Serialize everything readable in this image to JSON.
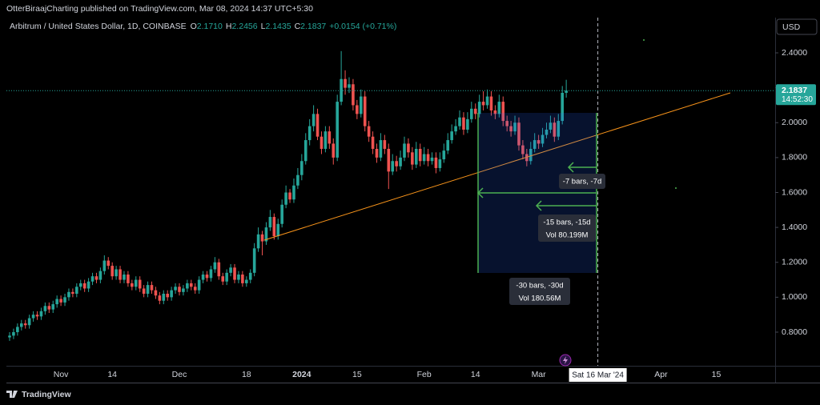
{
  "header": {
    "publisher": "OtterBiraajCharting published on TradingView.com, Mar 08, 2024 14:37 UTC+5:30",
    "brand": "TradingView"
  },
  "chart_data": {
    "type": "candlestick",
    "symbol": "Arbitrum / United States Dollar, 1D, COINBASE",
    "legend": [
      {
        "key": "O",
        "value": "2.1710"
      },
      {
        "key": "H",
        "value": "2.2456"
      },
      {
        "key": "L",
        "value": "2.1435"
      },
      {
        "key": "C",
        "value": "2.1837"
      }
    ],
    "change": "+0.0154 (+0.71%)",
    "currency": "USD",
    "up_color": "#26a69a",
    "down_color": "#ef5350",
    "last_price": {
      "value": 2.1837,
      "label": "2.1837"
    },
    "countdown": "14:52:30",
    "ylim": [
      0.6,
      2.6
    ],
    "yticks": [
      {
        "value": 0.8,
        "label": "0.8000"
      },
      {
        "value": 1.0,
        "label": "1.0000"
      },
      {
        "value": 1.2,
        "label": "1.2000"
      },
      {
        "value": 1.4,
        "label": "1.4000"
      },
      {
        "value": 1.6,
        "label": "1.6000"
      },
      {
        "value": 1.8,
        "label": "1.8000"
      },
      {
        "value": 2.0,
        "label": "2.0000"
      },
      {
        "value": 2.2,
        "label": "2.2000"
      },
      {
        "value": 2.4,
        "label": "2.4000"
      }
    ],
    "categories": [
      null,
      null,
      null,
      null,
      null,
      null,
      null,
      null,
      null,
      null,
      null,
      null,
      null,
      "Nov",
      null,
      null,
      null,
      null,
      null,
      null,
      null,
      null,
      null,
      null,
      null,
      null,
      "14",
      null,
      null,
      null,
      null,
      null,
      null,
      null,
      null,
      null,
      null,
      null,
      null,
      null,
      null,
      null,
      null,
      "Dec",
      null,
      null,
      null,
      null,
      null,
      null,
      null,
      null,
      null,
      null,
      null,
      null,
      null,
      null,
      null,
      null,
      "18",
      null,
      null,
      null,
      null,
      null,
      null,
      null,
      null,
      null,
      null,
      null,
      null,
      null,
      "2024",
      null,
      null,
      null,
      null,
      null,
      null,
      null,
      null,
      null,
      null,
      null,
      null,
      null,
      "15",
      null,
      null,
      null,
      null,
      null,
      null,
      null,
      null,
      null,
      null,
      null,
      null,
      null,
      null,
      null,
      null,
      "Feb",
      null,
      null,
      null,
      null,
      null,
      null,
      null,
      null,
      null,
      null,
      null,
      null,
      "14",
      null,
      null,
      null,
      null,
      null,
      null,
      null,
      null,
      null,
      null,
      null,
      null,
      null,
      null,
      null,
      "Mar",
      null,
      null,
      null,
      null,
      null,
      null,
      null,
      null,
      null,
      null,
      null,
      null,
      null,
      null,
      {
        "label": "Sat 16 Mar '24",
        "crosshair": true
      },
      null,
      null,
      null,
      null,
      null,
      null,
      null,
      null,
      null,
      null,
      null,
      null,
      null,
      null,
      null,
      "Apr",
      null,
      null,
      null,
      null,
      null,
      null,
      null,
      null,
      null,
      null,
      null,
      null,
      null,
      "15"
    ],
    "candles": [
      [
        0.77,
        0.8,
        0.75,
        0.78
      ],
      [
        0.78,
        0.82,
        0.76,
        0.8
      ],
      [
        0.8,
        0.85,
        0.78,
        0.83
      ],
      [
        0.83,
        0.87,
        0.81,
        0.85
      ],
      [
        0.85,
        0.87,
        0.82,
        0.84
      ],
      [
        0.84,
        0.9,
        0.82,
        0.88
      ],
      [
        0.88,
        0.92,
        0.86,
        0.9
      ],
      [
        0.9,
        0.92,
        0.87,
        0.89
      ],
      [
        0.89,
        0.94,
        0.87,
        0.92
      ],
      [
        0.92,
        0.97,
        0.9,
        0.95
      ],
      [
        0.95,
        0.97,
        0.91,
        0.93
      ],
      [
        0.93,
        0.98,
        0.91,
        0.96
      ],
      [
        0.96,
        1.01,
        0.94,
        0.99
      ],
      [
        0.99,
        1.01,
        0.95,
        0.97
      ],
      [
        0.97,
        1.02,
        0.95,
        1.0
      ],
      [
        1.0,
        1.05,
        0.98,
        1.03
      ],
      [
        1.03,
        1.05,
        1.0,
        1.02
      ],
      [
        1.02,
        1.08,
        1.0,
        1.06
      ],
      [
        1.06,
        1.1,
        1.04,
        1.08
      ],
      [
        1.08,
        1.1,
        1.03,
        1.05
      ],
      [
        1.05,
        1.11,
        1.03,
        1.09
      ],
      [
        1.09,
        1.14,
        1.07,
        1.12
      ],
      [
        1.12,
        1.14,
        1.08,
        1.1
      ],
      [
        1.1,
        1.17,
        1.08,
        1.15
      ],
      [
        1.15,
        1.24,
        1.13,
        1.21
      ],
      [
        1.21,
        1.23,
        1.16,
        1.18
      ],
      [
        1.18,
        1.2,
        1.1,
        1.12
      ],
      [
        1.12,
        1.18,
        1.1,
        1.16
      ],
      [
        1.16,
        1.18,
        1.08,
        1.1
      ],
      [
        1.1,
        1.15,
        1.08,
        1.13
      ],
      [
        1.13,
        1.15,
        1.06,
        1.08
      ],
      [
        1.08,
        1.1,
        1.04,
        1.06
      ],
      [
        1.06,
        1.12,
        1.04,
        1.1
      ],
      [
        1.1,
        1.12,
        1.03,
        1.05
      ],
      [
        1.05,
        1.07,
        1.0,
        1.02
      ],
      [
        1.02,
        1.09,
        1.0,
        1.07
      ],
      [
        1.07,
        1.09,
        1.02,
        1.04
      ],
      [
        1.04,
        1.06,
        0.99,
        1.01
      ],
      [
        1.01,
        1.03,
        0.96,
        0.98
      ],
      [
        0.98,
        1.04,
        0.96,
        1.02
      ],
      [
        1.02,
        1.04,
        0.98,
        1.0
      ],
      [
        1.0,
        1.06,
        0.98,
        1.04
      ],
      [
        1.04,
        1.08,
        1.02,
        1.06
      ],
      [
        1.06,
        1.08,
        1.01,
        1.03
      ],
      [
        1.03,
        1.07,
        1.01,
        1.05
      ],
      [
        1.05,
        1.1,
        1.03,
        1.08
      ],
      [
        1.08,
        1.1,
        1.04,
        1.06
      ],
      [
        1.06,
        1.08,
        1.02,
        1.04
      ],
      [
        1.04,
        1.12,
        1.02,
        1.1
      ],
      [
        1.1,
        1.15,
        1.08,
        1.13
      ],
      [
        1.13,
        1.15,
        1.09,
        1.11
      ],
      [
        1.11,
        1.18,
        1.09,
        1.16
      ],
      [
        1.16,
        1.23,
        1.14,
        1.2
      ],
      [
        1.2,
        1.22,
        1.1,
        1.12
      ],
      [
        1.12,
        1.14,
        1.07,
        1.09
      ],
      [
        1.09,
        1.16,
        1.07,
        1.14
      ],
      [
        1.14,
        1.19,
        1.12,
        1.17
      ],
      [
        1.17,
        1.19,
        1.08,
        1.1
      ],
      [
        1.1,
        1.15,
        1.08,
        1.13
      ],
      [
        1.13,
        1.15,
        1.06,
        1.08
      ],
      [
        1.08,
        1.12,
        1.06,
        1.1
      ],
      [
        1.1,
        1.16,
        1.08,
        1.14
      ],
      [
        1.14,
        1.31,
        1.12,
        1.28
      ],
      [
        1.28,
        1.4,
        1.26,
        1.36
      ],
      [
        1.36,
        1.38,
        1.24,
        1.32
      ],
      [
        1.32,
        1.43,
        1.3,
        1.4
      ],
      [
        1.4,
        1.5,
        1.38,
        1.46
      ],
      [
        1.46,
        1.48,
        1.33,
        1.35
      ],
      [
        1.35,
        1.45,
        1.33,
        1.42
      ],
      [
        1.42,
        1.56,
        1.4,
        1.53
      ],
      [
        1.53,
        1.64,
        1.51,
        1.6
      ],
      [
        1.6,
        1.62,
        1.54,
        1.56
      ],
      [
        1.56,
        1.68,
        1.54,
        1.64
      ],
      [
        1.64,
        1.74,
        1.62,
        1.7
      ],
      [
        1.7,
        1.82,
        1.67,
        1.78
      ],
      [
        1.78,
        1.94,
        1.76,
        1.9
      ],
      [
        1.9,
        2.02,
        1.87,
        1.98
      ],
      [
        1.98,
        2.1,
        1.95,
        2.05
      ],
      [
        2.05,
        2.08,
        1.9,
        1.92
      ],
      [
        1.92,
        1.95,
        1.82,
        1.85
      ],
      [
        1.85,
        1.98,
        1.83,
        1.95
      ],
      [
        1.95,
        1.98,
        1.85,
        1.88
      ],
      [
        1.88,
        1.91,
        1.76,
        1.8
      ],
      [
        1.8,
        2.16,
        1.78,
        2.12
      ],
      [
        2.12,
        2.41,
        2.1,
        2.25
      ],
      [
        2.25,
        2.3,
        2.16,
        2.2
      ],
      [
        2.2,
        2.26,
        2.17,
        2.22
      ],
      [
        2.22,
        2.25,
        2.07,
        2.1
      ],
      [
        2.1,
        2.13,
        2.02,
        2.05
      ],
      [
        2.05,
        2.19,
        2.03,
        2.15
      ],
      [
        2.15,
        2.18,
        1.95,
        1.98
      ],
      [
        1.98,
        2.01,
        1.89,
        1.92
      ],
      [
        1.92,
        1.95,
        1.82,
        1.85
      ],
      [
        1.85,
        1.88,
        1.77,
        1.8
      ],
      [
        1.8,
        1.94,
        1.78,
        1.9
      ],
      [
        1.9,
        1.93,
        1.82,
        1.85
      ],
      [
        1.85,
        1.88,
        1.62,
        1.72
      ],
      [
        1.72,
        1.82,
        1.7,
        1.78
      ],
      [
        1.78,
        1.81,
        1.72,
        1.75
      ],
      [
        1.75,
        1.84,
        1.73,
        1.8
      ],
      [
        1.8,
        1.92,
        1.78,
        1.88
      ],
      [
        1.88,
        1.91,
        1.8,
        1.83
      ],
      [
        1.83,
        1.86,
        1.73,
        1.76
      ],
      [
        1.76,
        1.89,
        1.74,
        1.85
      ],
      [
        1.85,
        1.88,
        1.75,
        1.78
      ],
      [
        1.78,
        1.86,
        1.76,
        1.82
      ],
      [
        1.82,
        1.85,
        1.75,
        1.78
      ],
      [
        1.78,
        1.83,
        1.76,
        1.8
      ],
      [
        1.8,
        1.83,
        1.71,
        1.74
      ],
      [
        1.74,
        1.83,
        1.72,
        1.79
      ],
      [
        1.79,
        1.88,
        1.77,
        1.84
      ],
      [
        1.84,
        1.94,
        1.82,
        1.9
      ],
      [
        1.9,
        1.99,
        1.88,
        1.95
      ],
      [
        1.95,
        2.02,
        1.93,
        1.98
      ],
      [
        1.98,
        2.07,
        1.96,
        2.03
      ],
      [
        2.03,
        2.06,
        1.93,
        1.96
      ],
      [
        1.96,
        2.06,
        1.94,
        2.02
      ],
      [
        2.02,
        2.12,
        2.0,
        2.08
      ],
      [
        2.08,
        2.11,
        2.02,
        2.05
      ],
      [
        2.05,
        2.16,
        2.03,
        2.12
      ],
      [
        2.12,
        2.18,
        2.07,
        2.1
      ],
      [
        2.1,
        2.19,
        2.08,
        2.15
      ],
      [
        2.15,
        2.18,
        2.04,
        2.07
      ],
      [
        2.07,
        2.1,
        2.02,
        2.05
      ],
      [
        2.05,
        2.16,
        2.03,
        2.12
      ],
      [
        2.12,
        2.15,
        1.98,
        2.01
      ],
      [
        2.01,
        2.04,
        1.95,
        1.98
      ],
      [
        1.98,
        2.01,
        1.92,
        1.95
      ],
      [
        1.95,
        2.04,
        1.93,
        2.0
      ],
      [
        2.0,
        2.03,
        1.84,
        1.87
      ],
      [
        1.87,
        1.9,
        1.79,
        1.82
      ],
      [
        1.82,
        1.85,
        1.75,
        1.78
      ],
      [
        1.78,
        1.89,
        1.76,
        1.85
      ],
      [
        1.85,
        1.94,
        1.83,
        1.9
      ],
      [
        1.9,
        1.93,
        1.85,
        1.88
      ],
      [
        1.88,
        1.97,
        1.86,
        1.93
      ],
      [
        1.93,
        2.0,
        1.91,
        1.96
      ],
      [
        1.96,
        2.04,
        1.94,
        2.0
      ],
      [
        2.0,
        2.03,
        1.89,
        1.92
      ],
      [
        1.92,
        2.05,
        1.9,
        2.01
      ],
      [
        2.01,
        2.21,
        1.99,
        2.171
      ],
      [
        2.171,
        2.2456,
        2.1435,
        2.1837
      ],
      null,
      null,
      null,
      null,
      null,
      null,
      null,
      null,
      null,
      null,
      null,
      null,
      null,
      null,
      null,
      null,
      null,
      null,
      null,
      null,
      null,
      null,
      null,
      null,
      null,
      null,
      null,
      null,
      null,
      null,
      null,
      null,
      null,
      null,
      null,
      null,
      null,
      null
    ],
    "measurements": [
      {
        "text": "-7 bars, -7d"
      },
      {
        "text": "-15 bars, -15d",
        "volume": "Vol 80.199M"
      },
      {
        "text": "-30 bars, -30d",
        "volume": "Vol 180.56M"
      }
    ]
  }
}
